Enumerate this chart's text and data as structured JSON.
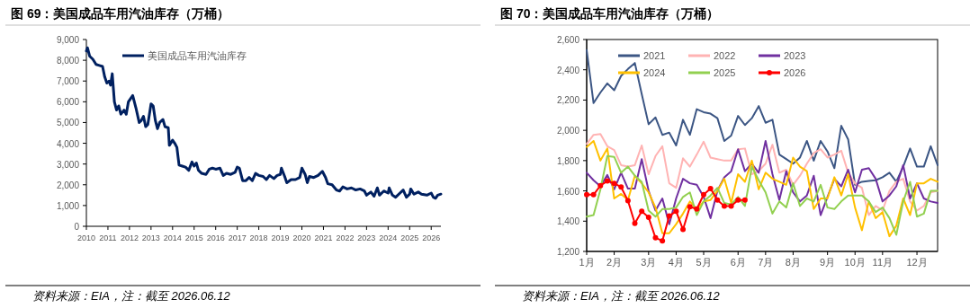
{
  "chart_data": [
    {
      "type": "line",
      "title": "图 69：美国成品车用汽油库存（万桶）",
      "legend": "top left",
      "line_style": "solid",
      "marker": "none",
      "xlim": [
        2010,
        2026.45
      ],
      "xticks": [
        2010,
        2011,
        2012,
        2013,
        2014,
        2015,
        2016,
        2017,
        2018,
        2019,
        2020,
        2021,
        2022,
        2023,
        2024,
        2025,
        2026
      ],
      "ylim": [
        0,
        9000
      ],
      "yticks": [
        {
          "value": 0,
          "label": "0"
        },
        {
          "value": 1000,
          "label": "1,000"
        },
        {
          "value": 2000,
          "label": "2,000"
        },
        {
          "value": 3000,
          "label": "3,000"
        },
        {
          "value": 4000,
          "label": "4,000"
        },
        {
          "value": 5000,
          "label": "5,000"
        },
        {
          "value": 6000,
          "label": "6,000"
        },
        {
          "value": 7000,
          "label": "7,000"
        },
        {
          "value": 8000,
          "label": "8,000"
        },
        {
          "value": 9000,
          "label": "9,000"
        }
      ],
      "annotations": [
        "资料来源：EIA，注：截至 2026.06.12"
      ],
      "series": [
        {
          "name": "美国成品车用汽油库存",
          "color": "#002060",
          "x": [
            2010.0,
            2010.05,
            2010.15,
            2010.3,
            2010.45,
            2010.6,
            2010.75,
            2010.85,
            2010.95,
            2011.05,
            2011.12,
            2011.2,
            2011.3,
            2011.4,
            2011.5,
            2011.6,
            2011.75,
            2011.85,
            2011.95,
            2012.15,
            2012.3,
            2012.45,
            2012.55,
            2012.65,
            2012.75,
            2012.85,
            2013.0,
            2013.1,
            2013.2,
            2013.3,
            2013.4,
            2013.55,
            2013.65,
            2013.8,
            2013.85,
            2014.0,
            2014.1,
            2014.2,
            2014.3,
            2014.45,
            2014.6,
            2014.75,
            2014.9,
            2015.0,
            2015.1,
            2015.2,
            2015.35,
            2015.55,
            2015.7,
            2015.85,
            2016.0,
            2016.2,
            2016.35,
            2016.5,
            2016.7,
            2016.9,
            2017.0,
            2017.1,
            2017.25,
            2017.4,
            2017.55,
            2017.7,
            2017.85,
            2018.0,
            2018.2,
            2018.35,
            2018.5,
            2018.7,
            2018.85,
            2019.0,
            2019.05,
            2019.2,
            2019.3,
            2019.5,
            2019.7,
            2019.9,
            2020.0,
            2020.15,
            2020.25,
            2020.35,
            2020.55,
            2020.75,
            2020.95,
            2021.1,
            2021.2,
            2021.4,
            2021.6,
            2021.75,
            2021.9,
            2022.1,
            2022.3,
            2022.5,
            2022.7,
            2022.9,
            2023.0,
            2023.2,
            2023.35,
            2023.5,
            2023.6,
            2023.8,
            2024.0,
            2024.05,
            2024.2,
            2024.35,
            2024.55,
            2024.7,
            2024.85,
            2025.0,
            2025.05,
            2025.2,
            2025.4,
            2025.55,
            2025.8,
            2026.0,
            2026.1,
            2026.2,
            2026.3,
            2026.45
          ],
          "values": [
            8450,
            8600,
            8200,
            8050,
            7800,
            7750,
            7700,
            7200,
            6900,
            7000,
            6800,
            7350,
            6000,
            5600,
            5800,
            5400,
            5600,
            5400,
            6000,
            6300,
            5700,
            5000,
            5100,
            5300,
            4800,
            4900,
            5900,
            5800,
            5100,
            4700,
            5000,
            5150,
            4800,
            4750,
            3900,
            4150,
            4000,
            3800,
            2950,
            2900,
            2850,
            2700,
            3100,
            2900,
            3050,
            2700,
            2550,
            2500,
            2750,
            2800,
            2750,
            2800,
            2450,
            2550,
            2500,
            2600,
            2850,
            2800,
            2200,
            2200,
            2350,
            2200,
            2550,
            2450,
            2400,
            2250,
            2450,
            2300,
            2450,
            2500,
            2800,
            2400,
            2100,
            2250,
            2250,
            2350,
            2800,
            2500,
            2100,
            2400,
            2350,
            2450,
            2650,
            2350,
            2050,
            2000,
            1750,
            1700,
            1900,
            1800,
            1850,
            1750,
            1800,
            1700,
            1500,
            1650,
            1450,
            1850,
            1500,
            1700,
            1600,
            1850,
            1500,
            1400,
            1600,
            1750,
            1400,
            1550,
            1800,
            1550,
            1650,
            1550,
            1500,
            1600,
            1400,
            1350,
            1500,
            1550
          ]
        }
      ]
    },
    {
      "type": "line",
      "title": "图 70：美国成品车用汽油库存（万桶）",
      "legend": "top",
      "line_style": "solid",
      "marker": "none",
      "categories": [
        "1月",
        null,
        null,
        null,
        "2月",
        null,
        null,
        null,
        null,
        "3月",
        null,
        null,
        null,
        "4月",
        null,
        null,
        null,
        "5月",
        null,
        null,
        null,
        null,
        "6月",
        null,
        null,
        null,
        "7月",
        null,
        null,
        null,
        "8月",
        null,
        null,
        null,
        null,
        "9月",
        null,
        null,
        null,
        "10月",
        null,
        null,
        null,
        "11月",
        null,
        null,
        null,
        null,
        "12月",
        null,
        null,
        null
      ],
      "ylim": [
        1200,
        2600
      ],
      "yticks": [
        {
          "value": 1200,
          "label": "1,200"
        },
        {
          "value": 1400,
          "label": "1,400"
        },
        {
          "value": 1600,
          "label": "1,600"
        },
        {
          "value": 1800,
          "label": "1,800"
        },
        {
          "value": 2000,
          "label": "2,000"
        },
        {
          "value": 2200,
          "label": "2,200"
        },
        {
          "value": 2400,
          "label": "2,400"
        },
        {
          "value": 2600,
          "label": "2,600"
        }
      ],
      "annotations": [
        "资料来源：EIA，注：截至 2026.06.12"
      ],
      "series": [
        {
          "name": "2021",
          "color": "#3c5684",
          "values": [
            2530,
            2180,
            2250,
            2310,
            2265,
            2360,
            2405,
            2445,
            2240,
            2040,
            2085,
            1970,
            1985,
            1900,
            2070,
            1970,
            2140,
            2120,
            2110,
            2080,
            1930,
            1965,
            2095,
            2035,
            2080,
            2160,
            2050,
            2070,
            1840,
            1810,
            1780,
            1820,
            1930,
            1800,
            1930,
            1860,
            1750,
            2030,
            1940,
            1640,
            1660,
            1665,
            1670,
            1690,
            1720,
            1660,
            1760,
            1880,
            1760,
            1760,
            1895,
            1770
          ]
        },
        {
          "name": "2022",
          "color": "#ffb3b3",
          "values": [
            1910,
            1970,
            1975,
            1895,
            1870,
            1770,
            1760,
            1770,
            1900,
            1710,
            1830,
            1895,
            1650,
            1620,
            1815,
            1760,
            1840,
            1925,
            1820,
            1810,
            1800,
            1800,
            1875,
            1880,
            1710,
            1730,
            1780,
            1905,
            1720,
            1740,
            1640,
            1700,
            1780,
            1850,
            1875,
            1820,
            1840,
            1865,
            1720,
            1650,
            1620,
            1440,
            1500,
            1470,
            1600,
            1660,
            1680,
            1530,
            1470,
            1500,
            1590,
            1600
          ]
        },
        {
          "name": "2023",
          "color": "#7030a0",
          "values": [
            1720,
            1670,
            1630,
            1705,
            1610,
            1720,
            1615,
            1615,
            1810,
            1600,
            1470,
            1550,
            1380,
            1550,
            1680,
            1650,
            1640,
            1560,
            1420,
            1600,
            1690,
            1730,
            1875,
            1730,
            1780,
            1720,
            1930,
            1710,
            1540,
            1730,
            1590,
            1530,
            1570,
            1700,
            1440,
            1560,
            1680,
            1630,
            1740,
            1590,
            1740,
            1750,
            1680,
            1530,
            1570,
            1630,
            1770,
            1550,
            1650,
            1550,
            1530,
            1520
          ]
        },
        {
          "name": "2024",
          "color": "#ffc000",
          "values": [
            1890,
            1930,
            1800,
            1880,
            1550,
            1580,
            1540,
            1700,
            1650,
            1590,
            1490,
            1320,
            1320,
            1380,
            1450,
            1530,
            1480,
            1530,
            1540,
            1600,
            1680,
            1520,
            1710,
            1660,
            1800,
            1610,
            1720,
            1680,
            1660,
            1640,
            1820,
            1760,
            1730,
            1480,
            1550,
            1550,
            1690,
            1570,
            1710,
            1490,
            1340,
            1530,
            1420,
            1460,
            1300,
            1370,
            1550,
            1440,
            1650,
            1650,
            1680,
            1660
          ]
        },
        {
          "name": "2025",
          "color": "#92d050",
          "values": [
            1430,
            1440,
            1610,
            1830,
            1825,
            1720,
            1760,
            1700,
            1660,
            1470,
            1430,
            1480,
            1480,
            1490,
            1560,
            1590,
            1440,
            1530,
            1570,
            1620,
            1520,
            1510,
            1560,
            1500,
            1760,
            1670,
            1590,
            1450,
            1530,
            1490,
            1650,
            1500,
            1550,
            1530,
            1640,
            1490,
            1480,
            1530,
            1570,
            1570,
            1570,
            1530,
            1460,
            1490,
            1420,
            1310,
            1530,
            1660,
            1430,
            1450,
            1600,
            1600
          ]
        },
        {
          "name": "2026",
          "color": "#ff0000",
          "marker": "circle",
          "values": [
            1575,
            1575,
            1635,
            1665,
            1650,
            1625,
            1535,
            1385,
            1465,
            1425,
            1290,
            1270,
            1435,
            1465,
            1345,
            1495,
            1480,
            1575,
            1615,
            1540,
            1500,
            1500,
            1540,
            1540,
            null,
            null,
            null,
            null,
            null,
            null,
            null,
            null,
            null,
            null,
            null,
            null,
            null,
            null,
            null,
            null,
            null,
            null,
            null,
            null,
            null,
            null,
            null,
            null,
            null,
            null,
            null,
            null
          ]
        }
      ]
    }
  ]
}
